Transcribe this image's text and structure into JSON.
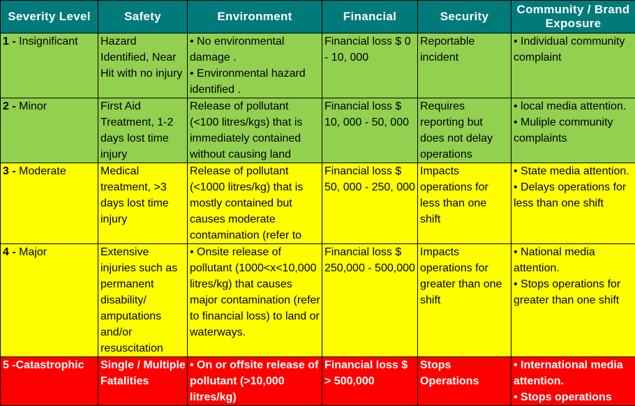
{
  "headers": {
    "severity": "Severity Level",
    "safety": "Safety",
    "environment": "Environment",
    "financial": "Financial",
    "security": "Security",
    "community": "Community / Brand Exposure"
  },
  "rows": [
    {
      "num": "1 -",
      "name": " Insignificant",
      "safety": "Hazard Identified, Near Hit with no injury",
      "environment": [
        "• No environmental damage .",
        "• Environmental hazard identified ."
      ],
      "financial": "Financial loss $ 0 - 10, 000",
      "security": "Reportable incident",
      "community": [
        "• Individual community complaint"
      ]
    },
    {
      "num": "2 -",
      "name": " Minor",
      "safety": "First Aid Treatment, 1-2 days lost time injury",
      "environment": [
        "Release of pollutant (<100 litres/kgs) that is immediately contained without causing land"
      ],
      "financial": "Financial loss $ 10, 000 - 50, 000",
      "security": "Requires reporting but does not delay operations",
      "community": [
        "• local media attention.",
        "• Muliple community complaints"
      ]
    },
    {
      "num": "3 -",
      "name": " Moderate",
      "safety": "Medical treatment,  >3 days lost time injury",
      "environment": [
        "Release of pollutant (<1000 litres/kg) that is mostly contained but causes moderate contamination (refer to"
      ],
      "financial": "Financial loss $ 50, 000 - 250, 000",
      "security": "Impacts operations for less than one shift",
      "community": [
        "• State media attention.",
        "• Delays operations for less than one shift"
      ]
    },
    {
      "num": "4 -",
      "name": " Major",
      "safety": "Extensive injuries such as permanent disability/ amputations and/or resuscitation",
      "environment": [
        "• Onsite release of pollutant (1000<x<10,000 litres/kg) that causes major contamination (refer to financial loss) to land or waterways."
      ],
      "financial": "Financial loss $ 250,000 - 500,000",
      "security": "Impacts operations for greater than one shift",
      "community": [
        "• National media attention.",
        "• Stops operations for greater than one shift"
      ]
    },
    {
      "num": "5",
      "name": " -Catastrophic",
      "safety": "Single / Multiple Fatalities",
      "environment": [
        "• On or offsite release of pollutant (>10,000  litres/kg)"
      ],
      "financial": "Financial loss $  > 500,000",
      "security": "Stops Operations",
      "community": [
        "• International media attention.",
        "• Stops operations"
      ]
    }
  ],
  "colors": {
    "header": "#007a7a",
    "insignificant_minor": "#92d050",
    "moderate_major": "#ffff00",
    "catastrophic": "#ff0000"
  }
}
